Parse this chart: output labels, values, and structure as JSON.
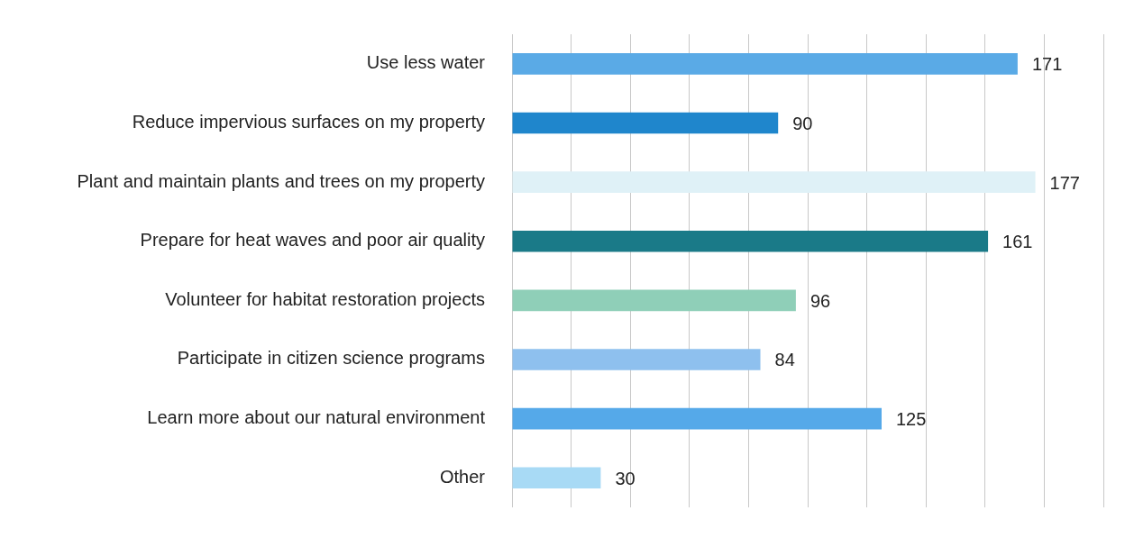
{
  "chart_data": {
    "type": "bar",
    "orientation": "horizontal",
    "categories": [
      "Use less water",
      "Reduce impervious surfaces on my property",
      "Plant and maintain plants and trees on my property",
      "Prepare for heat waves and poor air quality",
      "Volunteer for habitat restoration projects",
      "Participate in citizen science programs",
      "Learn more about our natural environment",
      "Other"
    ],
    "values": [
      171,
      90,
      177,
      161,
      96,
      84,
      125,
      30
    ],
    "colors": [
      "#5aaae6",
      "#1f86cc",
      "#dff1f7",
      "#1a7a88",
      "#8fcfb8",
      "#8ec0ee",
      "#55a9e9",
      "#a8daf5"
    ],
    "xlim": [
      0,
      200
    ],
    "xticks": [
      0,
      20,
      40,
      60,
      80,
      100,
      120,
      140,
      160,
      180,
      200
    ],
    "tick_labels": "y",
    "grid": "x",
    "data_labels": true,
    "legend": false
  }
}
